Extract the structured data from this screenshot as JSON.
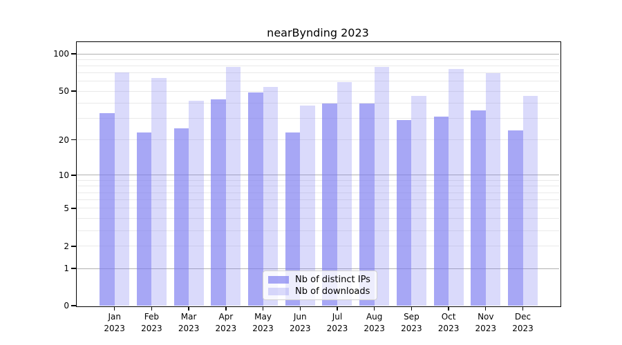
{
  "title": "nearBynding 2023",
  "chart_data": {
    "type": "bar",
    "title": "nearBynding 2023",
    "categories": [
      "Jan",
      "Feb",
      "Mar",
      "Apr",
      "May",
      "Jun",
      "Jul",
      "Aug",
      "Sep",
      "Oct",
      "Nov",
      "Dec"
    ],
    "x_tick_label_year": "2023",
    "series": [
      {
        "name": "Nb of distinct IPs",
        "color": "rgba(122,122,240,0.66)",
        "values": [
          33,
          23,
          25,
          43,
          49,
          23,
          40,
          40,
          29,
          31,
          35,
          24
        ]
      },
      {
        "name": "Nb of downloads",
        "color": "rgba(122,122,240,0.28)",
        "values": [
          71,
          64,
          42,
          78,
          54,
          38,
          59,
          78,
          46,
          76,
          70,
          46
        ]
      }
    ],
    "y_scale": "log-like: position = log10(1 + value)",
    "ylim": [
      0,
      124
    ],
    "y_ticks": [
      0,
      1,
      2,
      5,
      10,
      20,
      50,
      100
    ],
    "y_major_gridlines": [
      1,
      10,
      100
    ],
    "y_minor_gridlines": [
      2,
      3,
      4,
      5,
      6,
      7,
      8,
      9,
      20,
      30,
      40,
      50,
      60,
      70,
      80,
      90
    ],
    "grid": true,
    "legend_position": "lower center"
  },
  "colors": {
    "background": "#ffffff",
    "axis": "#000000",
    "grid_major": "#b0b0b0",
    "grid_minor": "#e9e9e9",
    "bar_distinct_ips": "rgba(122,122,240,0.66)",
    "bar_downloads": "rgba(122,122,240,0.28)"
  }
}
